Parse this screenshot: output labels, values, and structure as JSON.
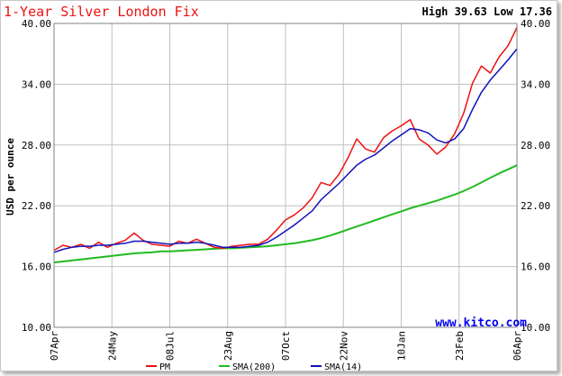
{
  "chart_data": {
    "type": "line",
    "title": "1-Year Silver London Fix",
    "subtitle": "High 39.63 Low 17.36",
    "ylabel": "USD per ounce",
    "watermark": "www.kitco.com",
    "ylim": [
      10,
      40
    ],
    "y_ticks": [
      "10.00",
      "16.00",
      "22.00",
      "28.00",
      "34.00",
      "40.00"
    ],
    "x_ticks": [
      "07Apr",
      "24May",
      "08Jul",
      "23Aug",
      "07Oct",
      "22Nov",
      "10Jan",
      "23Feb",
      "06Apr"
    ],
    "grid": true,
    "legend_position": "bottom",
    "x_count": 53,
    "series": [
      {
        "name": "PM",
        "color": "#ee1111",
        "values": [
          17.6,
          18.1,
          17.9,
          18.2,
          17.8,
          18.4,
          17.9,
          18.3,
          18.6,
          19.3,
          18.6,
          18.2,
          18.1,
          18.0,
          18.5,
          18.3,
          18.7,
          18.3,
          17.9,
          17.8,
          18.0,
          18.1,
          18.2,
          18.2,
          18.7,
          19.6,
          20.6,
          21.1,
          21.8,
          22.8,
          24.3,
          24.0,
          25.1,
          26.7,
          28.6,
          27.6,
          27.3,
          28.7,
          29.4,
          29.9,
          30.5,
          28.6,
          28.0,
          27.1,
          27.8,
          29.1,
          31.1,
          34.1,
          35.8,
          35.1,
          36.7,
          37.8,
          39.6
        ]
      },
      {
        "name": "SMA(200)",
        "color": "#22bb22",
        "values": [
          16.4,
          16.5,
          16.6,
          16.7,
          16.8,
          16.9,
          17.0,
          17.1,
          17.2,
          17.3,
          17.35,
          17.4,
          17.5,
          17.5,
          17.55,
          17.6,
          17.65,
          17.7,
          17.75,
          17.8,
          17.8,
          17.85,
          17.9,
          17.95,
          18.0,
          18.1,
          18.2,
          18.3,
          18.45,
          18.6,
          18.8,
          19.05,
          19.35,
          19.65,
          19.95,
          20.25,
          20.55,
          20.85,
          21.15,
          21.45,
          21.75,
          22.0,
          22.25,
          22.5,
          22.8,
          23.1,
          23.45,
          23.85,
          24.3,
          24.75,
          25.2,
          25.6,
          26.0
        ]
      },
      {
        "name": "SMA(14)",
        "color": "#1111bb",
        "values": [
          17.4,
          17.7,
          17.9,
          18.0,
          18.0,
          18.1,
          18.1,
          18.2,
          18.3,
          18.5,
          18.5,
          18.4,
          18.3,
          18.2,
          18.3,
          18.3,
          18.4,
          18.3,
          18.1,
          17.9,
          17.9,
          17.9,
          18.0,
          18.1,
          18.4,
          18.9,
          19.5,
          20.1,
          20.8,
          21.5,
          22.6,
          23.4,
          24.2,
          25.1,
          26.0,
          26.6,
          27.0,
          27.7,
          28.4,
          29.0,
          29.6,
          29.5,
          29.2,
          28.5,
          28.2,
          28.6,
          29.6,
          31.5,
          33.2,
          34.4,
          35.4,
          36.4,
          37.5
        ]
      }
    ]
  }
}
